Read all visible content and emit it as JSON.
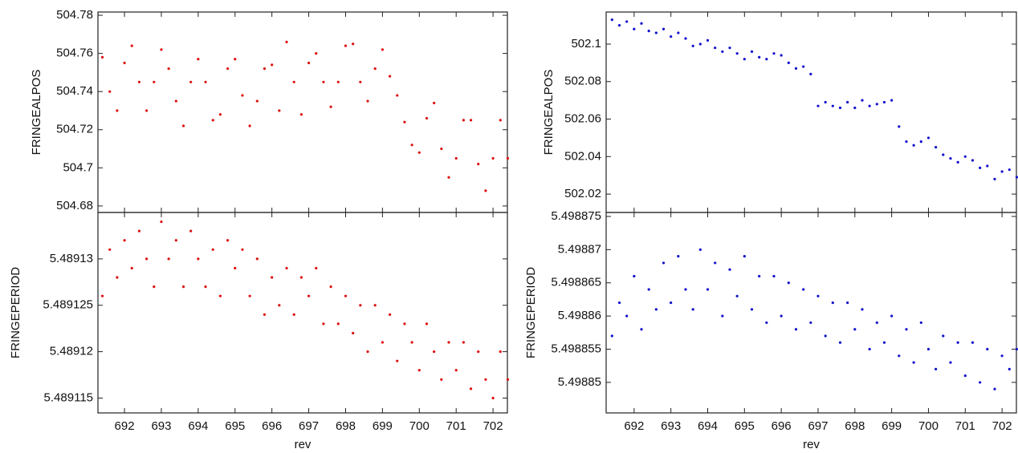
{
  "chart_data": [
    {
      "type": "scatter",
      "y_label": "FRINGEALPOS",
      "color": "#dd1111",
      "xlim": [
        691.28,
        702.39
      ],
      "ylim": [
        504.6766,
        504.7817
      ],
      "xticks": [
        692,
        693,
        694,
        695,
        696,
        697,
        698,
        699,
        700,
        701,
        702
      ],
      "yticks": [
        504.68,
        504.7,
        504.72,
        504.74,
        504.76,
        504.78
      ],
      "x": [
        691.4,
        691.6,
        691.8,
        692.0,
        692.2,
        692.4,
        692.6,
        692.8,
        693.0,
        693.2,
        693.4,
        693.6,
        693.8,
        694.0,
        694.2,
        694.4,
        694.6,
        694.8,
        695.0,
        695.2,
        695.4,
        695.6,
        695.8,
        696.0,
        696.2,
        696.4,
        696.6,
        696.8,
        697.0,
        697.2,
        697.4,
        697.6,
        697.8,
        698.0,
        698.2,
        698.4,
        698.6,
        698.8,
        699.0,
        699.2,
        699.4,
        699.6,
        699.8,
        700.0,
        700.2,
        700.4,
        700.6,
        700.8,
        701.0,
        701.2,
        701.4,
        701.6,
        701.8,
        702.0,
        702.2,
        702.4
      ],
      "values": [
        504.758,
        504.74,
        504.73,
        504.755,
        504.764,
        504.745,
        504.73,
        504.745,
        504.762,
        504.752,
        504.735,
        504.722,
        504.745,
        504.757,
        504.745,
        504.725,
        504.728,
        504.752,
        504.757,
        504.738,
        504.722,
        504.735,
        504.752,
        504.754,
        504.73,
        504.766,
        504.745,
        504.728,
        504.755,
        504.76,
        504.745,
        504.732,
        504.745,
        504.764,
        504.765,
        504.745,
        504.735,
        504.752,
        504.762,
        504.748,
        504.738,
        504.724,
        504.712,
        504.708,
        504.726,
        504.734,
        504.71,
        504.695,
        504.705,
        504.725,
        504.725,
        504.702,
        504.688,
        504.705,
        504.725,
        504.705
      ]
    },
    {
      "type": "scatter",
      "y_label": "FRINGEPERIOD",
      "x_label": "rev",
      "color": "#dd1111",
      "xlim": [
        691.28,
        702.39
      ],
      "ylim": [
        5.4891134,
        5.489135
      ],
      "xticks": [
        692,
        693,
        694,
        695,
        696,
        697,
        698,
        699,
        700,
        701,
        702
      ],
      "yticks": [
        5.489115,
        5.48912,
        5.489125,
        5.48913
      ],
      "x": [
        691.4,
        691.6,
        691.8,
        692.0,
        692.2,
        692.4,
        692.6,
        692.8,
        693.0,
        693.2,
        693.4,
        693.6,
        693.8,
        694.0,
        694.2,
        694.4,
        694.6,
        694.8,
        695.0,
        695.2,
        695.4,
        695.6,
        695.8,
        696.0,
        696.2,
        696.4,
        696.6,
        696.8,
        697.0,
        697.2,
        697.4,
        697.6,
        697.8,
        698.0,
        698.2,
        698.4,
        698.6,
        698.8,
        699.0,
        699.2,
        699.4,
        699.6,
        699.8,
        700.0,
        700.2,
        700.4,
        700.6,
        700.8,
        701.0,
        701.2,
        701.4,
        701.6,
        701.8,
        702.0,
        702.2,
        702.4
      ],
      "values": [
        5.489126,
        5.489131,
        5.489128,
        5.489132,
        5.489129,
        5.489133,
        5.48913,
        5.489127,
        5.489134,
        5.48913,
        5.489132,
        5.489127,
        5.489133,
        5.48913,
        5.489127,
        5.489131,
        5.489126,
        5.489132,
        5.489129,
        5.489131,
        5.489126,
        5.48913,
        5.489124,
        5.489128,
        5.489125,
        5.489129,
        5.489124,
        5.489128,
        5.489126,
        5.489129,
        5.489123,
        5.489127,
        5.489123,
        5.489126,
        5.489122,
        5.489125,
        5.48912,
        5.489125,
        5.489121,
        5.489124,
        5.489119,
        5.489123,
        5.489121,
        5.489118,
        5.489123,
        5.48912,
        5.489117,
        5.489121,
        5.489118,
        5.489121,
        5.489116,
        5.48912,
        5.489117,
        5.489115,
        5.48912,
        5.489117
      ]
    },
    {
      "type": "scatter",
      "y_label": "FRINGEALPOS",
      "color": "#1111cc",
      "xlim": [
        691.24,
        702.39
      ],
      "ylim": [
        502.0102,
        502.1171
      ],
      "xticks": [
        692,
        693,
        694,
        695,
        696,
        697,
        698,
        699,
        700,
        701,
        702
      ],
      "yticks": [
        502.02,
        502.04,
        502.06,
        502.08,
        502.1
      ],
      "x": [
        691.4,
        691.6,
        691.8,
        692.0,
        692.2,
        692.4,
        692.6,
        692.8,
        693.0,
        693.2,
        693.4,
        693.6,
        693.8,
        694.0,
        694.2,
        694.4,
        694.6,
        694.8,
        695.0,
        695.2,
        695.4,
        695.6,
        695.8,
        696.0,
        696.2,
        696.4,
        696.6,
        696.8,
        697.0,
        697.2,
        697.4,
        697.6,
        697.8,
        698.0,
        698.2,
        698.4,
        698.6,
        698.8,
        699.0,
        699.2,
        699.4,
        699.6,
        699.8,
        700.0,
        700.2,
        700.4,
        700.6,
        700.8,
        701.0,
        701.2,
        701.4,
        701.6,
        701.8,
        702.0,
        702.2,
        702.4
      ],
      "values": [
        502.113,
        502.11,
        502.112,
        502.108,
        502.111,
        502.107,
        502.106,
        502.108,
        502.104,
        502.106,
        502.103,
        502.099,
        502.1,
        502.102,
        502.098,
        502.096,
        502.098,
        502.095,
        502.092,
        502.096,
        502.093,
        502.092,
        502.095,
        502.094,
        502.09,
        502.087,
        502.088,
        502.084,
        502.067,
        502.069,
        502.067,
        502.066,
        502.069,
        502.066,
        502.07,
        502.067,
        502.068,
        502.069,
        502.07,
        502.056,
        502.048,
        502.046,
        502.048,
        502.05,
        502.045,
        502.041,
        502.039,
        502.037,
        502.04,
        502.038,
        502.034,
        502.035,
        502.028,
        502.032,
        502.033,
        502.029
      ]
    },
    {
      "type": "scatter",
      "y_label": "FRINGEPERIOD",
      "x_label": "rev",
      "color": "#1111cc",
      "xlim": [
        691.24,
        702.39
      ],
      "ylim": [
        5.4988454,
        5.4988756
      ],
      "xticks": [
        692,
        693,
        694,
        695,
        696,
        697,
        698,
        699,
        700,
        701,
        702
      ],
      "yticks": [
        5.49885,
        5.498855,
        5.49886,
        5.498865,
        5.49887,
        5.498875
      ],
      "x": [
        691.4,
        691.6,
        691.8,
        692.0,
        692.2,
        692.4,
        692.6,
        692.8,
        693.0,
        693.2,
        693.4,
        693.6,
        693.8,
        694.0,
        694.2,
        694.4,
        694.6,
        694.8,
        695.0,
        695.2,
        695.4,
        695.6,
        695.8,
        696.0,
        696.2,
        696.4,
        696.6,
        696.8,
        697.0,
        697.2,
        697.4,
        697.6,
        697.8,
        698.0,
        698.2,
        698.4,
        698.6,
        698.8,
        699.0,
        699.2,
        699.4,
        699.6,
        699.8,
        700.0,
        700.2,
        700.4,
        700.6,
        700.8,
        701.0,
        701.2,
        701.4,
        701.6,
        701.8,
        702.0,
        702.2,
        702.4
      ],
      "values": [
        5.498857,
        5.498862,
        5.49886,
        5.498866,
        5.498858,
        5.498864,
        5.498861,
        5.498868,
        5.498862,
        5.498869,
        5.498864,
        5.498861,
        5.49887,
        5.498864,
        5.498868,
        5.49886,
        5.498867,
        5.498863,
        5.498869,
        5.498861,
        5.498866,
        5.498859,
        5.498866,
        5.49886,
        5.498865,
        5.498858,
        5.498864,
        5.498859,
        5.498863,
        5.498857,
        5.498862,
        5.498856,
        5.498862,
        5.498858,
        5.498861,
        5.498855,
        5.498859,
        5.498856,
        5.49886,
        5.498854,
        5.498858,
        5.498853,
        5.498859,
        5.498855,
        5.498852,
        5.498857,
        5.498853,
        5.498856,
        5.498851,
        5.498856,
        5.49885,
        5.498855,
        5.498849,
        5.498854,
        5.498852,
        5.498855
      ]
    }
  ]
}
